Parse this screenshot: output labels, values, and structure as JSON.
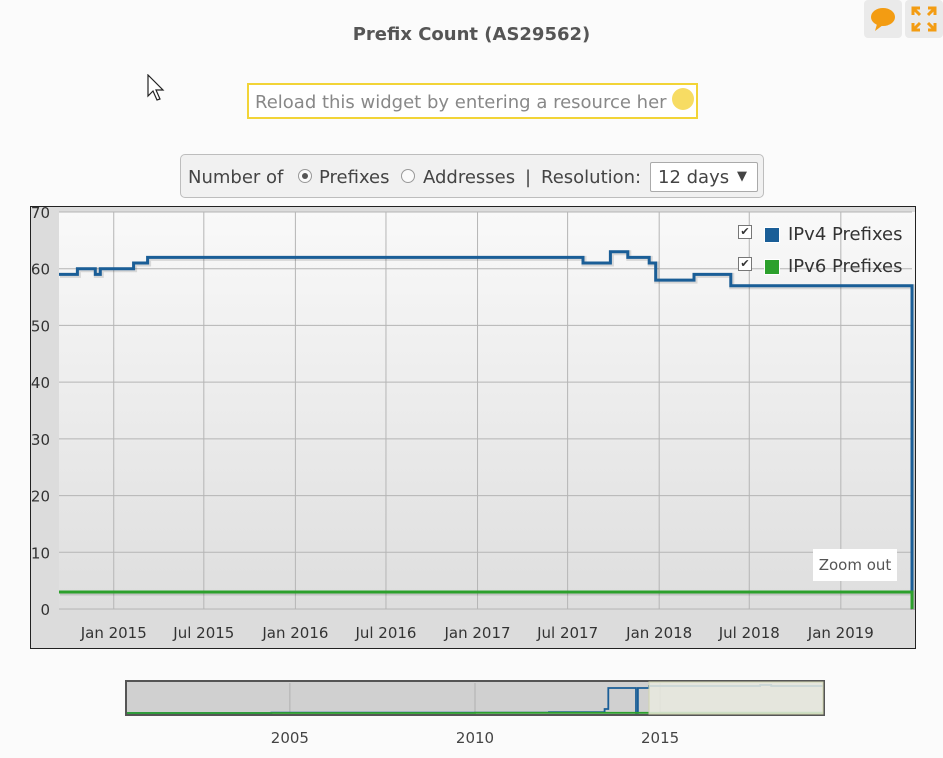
{
  "title": "Prefix Count (AS29562)",
  "header": {
    "comment_icon": "speech-bubble-icon",
    "expand_icon": "fullscreen-icon",
    "accent": "#f39c12"
  },
  "search": {
    "text": "Reload this widget by entering a resource her"
  },
  "controls": {
    "number_of_label": "Number of",
    "option_prefixes": "Prefixes",
    "option_addresses": "Addresses",
    "separator": "|",
    "resolution_label": "Resolution:",
    "resolution_value": "12 days",
    "dropdown_arrow": "▼",
    "selected": "Prefixes"
  },
  "legend": [
    {
      "label": "IPv4 Prefixes",
      "color": "#1a5e97",
      "checked": true,
      "check": "✔"
    },
    {
      "label": "IPv6 Prefixes",
      "color": "#2ca02c",
      "checked": true,
      "check": "✔"
    }
  ],
  "zoom_out_label": "Zoom out",
  "chart_data": {
    "type": "line",
    "step": true,
    "ylim": [
      0,
      70
    ],
    "yticks": [
      "0",
      "10",
      "20",
      "30",
      "40",
      "50",
      "60",
      "70"
    ],
    "xlim": [
      "2014-09-13",
      "2019-05-24"
    ],
    "xticks": [
      {
        "label": "Jan 2015",
        "date": "2015-01-01"
      },
      {
        "label": "Jul 2015",
        "date": "2015-07-01"
      },
      {
        "label": "Jan 2016",
        "date": "2016-01-01"
      },
      {
        "label": "Jul 2016",
        "date": "2016-07-01"
      },
      {
        "label": "Jan 2017",
        "date": "2017-01-01"
      },
      {
        "label": "Jul 2017",
        "date": "2017-07-01"
      },
      {
        "label": "Jan 2018",
        "date": "2018-01-01"
      },
      {
        "label": "Jul 2018",
        "date": "2018-07-01"
      },
      {
        "label": "Jan 2019",
        "date": "2019-01-01"
      }
    ],
    "grid": true,
    "legend_position": "top-right",
    "series": [
      {
        "name": "IPv4 Prefixes",
        "color": "#1a5e97",
        "points": [
          [
            "2014-09-13",
            59
          ],
          [
            "2014-10-20",
            60
          ],
          [
            "2014-11-25",
            59
          ],
          [
            "2014-12-05",
            60
          ],
          [
            "2015-02-10",
            61
          ],
          [
            "2015-03-10",
            62
          ],
          [
            "2017-08-01",
            61
          ],
          [
            "2017-09-25",
            63
          ],
          [
            "2017-10-30",
            62
          ],
          [
            "2017-12-12",
            61
          ],
          [
            "2017-12-25",
            58
          ],
          [
            "2018-03-12",
            59
          ],
          [
            "2018-05-25",
            57
          ],
          [
            "2019-05-22",
            57
          ],
          [
            "2019-05-24",
            0
          ]
        ]
      },
      {
        "name": "IPv6 Prefixes",
        "color": "#2ca02c",
        "points": [
          [
            "2014-09-13",
            3
          ],
          [
            "2019-05-22",
            3
          ],
          [
            "2019-05-24",
            0
          ]
        ]
      }
    ]
  },
  "navigator": {
    "ticks": [
      "2005",
      "2010",
      "2015"
    ],
    "tick_years": [
      2005,
      2010,
      2015
    ],
    "range_years": [
      2000.6,
      2019.4
    ],
    "selected_years": [
      2014.7,
      2019.4
    ],
    "ipv4_points": [
      [
        2000.6,
        0
      ],
      [
        2004.5,
        0.4
      ],
      [
        2012,
        0.8
      ],
      [
        2013.5,
        4
      ],
      [
        2013.6,
        25
      ],
      [
        2014.3,
        25
      ],
      [
        2014.35,
        0
      ],
      [
        2014.4,
        25
      ],
      [
        2014.7,
        27
      ],
      [
        2017.7,
        28
      ],
      [
        2018,
        27
      ],
      [
        2019.4,
        27
      ]
    ],
    "ipv6_points": [
      [
        2000.6,
        0
      ],
      [
        2010,
        0.2
      ],
      [
        2015,
        0.4
      ],
      [
        2019.4,
        0.4
      ]
    ]
  }
}
